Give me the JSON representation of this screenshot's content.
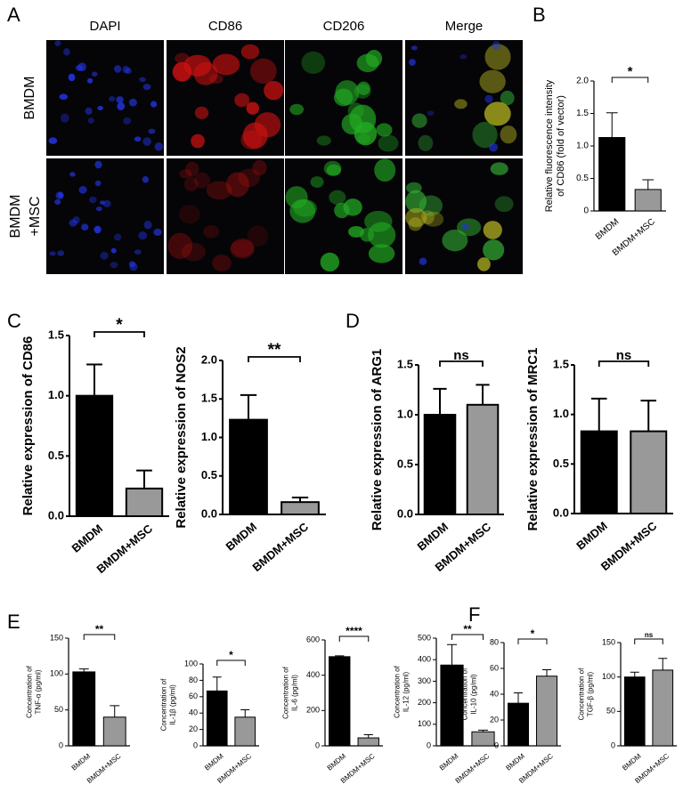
{
  "figure": {
    "panels": [
      "A",
      "B",
      "C",
      "D",
      "E",
      "F"
    ],
    "image_columns": [
      "DAPI",
      "CD86",
      "CD206",
      "Merge"
    ],
    "image_rows": [
      "BMDM",
      "BMDM",
      "+MSC"
    ]
  },
  "chart_data": [
    {
      "type": "bar",
      "ylabel": [
        "Relative fluorescence intensity",
        "of CD86 (fold of vector)"
      ],
      "categories": [
        "BMDM",
        "BMDM+MSC"
      ],
      "values": [
        1.13,
        0.33
      ],
      "errors": [
        0.38,
        0.15
      ],
      "colors": [
        "#000000",
        "#999999"
      ],
      "ylim": [
        0,
        2.0
      ],
      "yticks": [
        0,
        {
          "value": 0.5,
          "label": "0.5"
        },
        {
          "value": 1,
          "label": "1.0"
        },
        {
          "value": 1.5,
          "label": "1.5"
        },
        {
          "value": 2,
          "label": "2.0"
        }
      ],
      "annotation": "*"
    },
    {
      "type": "bar",
      "ylabel": [
        "Relative expression of CD86"
      ],
      "categories": [
        "BMDM",
        "BMDM+MSC"
      ],
      "values": [
        1.0,
        0.23
      ],
      "errors": [
        0.26,
        0.15
      ],
      "colors": [
        "#000000",
        "#999999"
      ],
      "ylim": [
        0,
        1.5
      ],
      "yticks": [
        {
          "value": 0,
          "label": "0.0"
        },
        {
          "value": 0.5,
          "label": "0.5"
        },
        {
          "value": 1,
          "label": "1.0"
        },
        {
          "value": 1.5,
          "label": "1.5"
        }
      ],
      "annotation": "*"
    },
    {
      "type": "bar",
      "ylabel": [
        "Relative expression of NOS2"
      ],
      "categories": [
        "BMDM",
        "BMDM+MSC"
      ],
      "values": [
        1.23,
        0.16
      ],
      "errors": [
        0.32,
        0.06
      ],
      "colors": [
        "#000000",
        "#999999"
      ],
      "ylim": [
        0,
        2.0
      ],
      "yticks": [
        {
          "value": 0,
          "label": "0.0"
        },
        {
          "value": 0.5,
          "label": "0.5"
        },
        {
          "value": 1,
          "label": "1.0"
        },
        {
          "value": 1.5,
          "label": "1.5"
        },
        {
          "value": 2,
          "label": "2.0"
        }
      ],
      "annotation": "**"
    },
    {
      "type": "bar",
      "ylabel": [
        "Relative expression of ARG1"
      ],
      "categories": [
        "BMDM",
        "BMDM+MSC"
      ],
      "values": [
        1.0,
        1.1
      ],
      "errors": [
        0.26,
        0.2
      ],
      "colors": [
        "#000000",
        "#999999"
      ],
      "ylim": [
        0,
        1.5
      ],
      "yticks": [
        {
          "value": 0,
          "label": "0.0"
        },
        {
          "value": 0.5,
          "label": "0.5"
        },
        {
          "value": 1,
          "label": "1.0"
        },
        {
          "value": 1.5,
          "label": "1.5"
        }
      ],
      "annotation": "ns"
    },
    {
      "type": "bar",
      "ylabel": [
        "Relative expression of MRC1"
      ],
      "categories": [
        "BMDM",
        "BMDM+MSC"
      ],
      "values": [
        0.83,
        0.83
      ],
      "errors": [
        0.33,
        0.31
      ],
      "colors": [
        "#000000",
        "#999999"
      ],
      "ylim": [
        0,
        1.5
      ],
      "yticks": [
        {
          "value": 0,
          "label": "0.0"
        },
        {
          "value": 0.5,
          "label": "0.5"
        },
        {
          "value": 1,
          "label": "1.0"
        },
        {
          "value": 1.5,
          "label": "1.5"
        }
      ],
      "annotation": "ns"
    },
    {
      "type": "bar",
      "ylabel": [
        "Concentration of",
        "TNF-α (pg/ml)"
      ],
      "categories": [
        "BMDM",
        "BMDM+MSC"
      ],
      "values": [
        103,
        40
      ],
      "errors": [
        4,
        16
      ],
      "colors": [
        "#000000",
        "#999999"
      ],
      "ylim": [
        0,
        150
      ],
      "yticks": [
        0,
        50,
        100,
        150
      ],
      "annotation": "**"
    },
    {
      "type": "bar",
      "ylabel": [
        "Concentration of",
        "IL-1β (pg/ml)"
      ],
      "categories": [
        "BMDM",
        "BMDM+MSC"
      ],
      "values": [
        67,
        35
      ],
      "errors": [
        17,
        9
      ],
      "colors": [
        "#000000",
        "#999999"
      ],
      "ylim": [
        0,
        100
      ],
      "yticks": [
        0,
        20,
        40,
        60,
        80,
        100
      ],
      "annotation": "*"
    },
    {
      "type": "bar",
      "ylabel": [
        "Concentration of",
        "IL-6 (pg/ml)"
      ],
      "categories": [
        "BMDM",
        "BMDM+MSC"
      ],
      "values": [
        505,
        45
      ],
      "errors": [
        5,
        18
      ],
      "colors": [
        "#000000",
        "#999999"
      ],
      "ylim": [
        0,
        600
      ],
      "yticks": [
        0,
        200,
        400,
        600
      ],
      "annotation": "****"
    },
    {
      "type": "bar",
      "ylabel": [
        "Concentration of",
        "IL-12 (pg/ml)"
      ],
      "categories": [
        "BMDM",
        "BMDM+MSC"
      ],
      "values": [
        375,
        65
      ],
      "errors": [
        95,
        8
      ],
      "colors": [
        "#000000",
        "#999999"
      ],
      "ylim": [
        0,
        500
      ],
      "yticks": [
        0,
        100,
        200,
        300,
        400,
        500
      ],
      "annotation": "**"
    },
    {
      "type": "bar",
      "ylabel": [
        "Concentration of",
        "IL-10 (pg/ml)"
      ],
      "categories": [
        "BMDM",
        "BMDM+MSC"
      ],
      "values": [
        33,
        54
      ],
      "errors": [
        8,
        5
      ],
      "colors": [
        "#000000",
        "#999999"
      ],
      "ylim": [
        0,
        80
      ],
      "yticks": [
        0,
        20,
        40,
        60,
        80
      ],
      "annotation": "*"
    },
    {
      "type": "bar",
      "ylabel": [
        "Concentration of",
        "TGF-β (pg/ml)"
      ],
      "categories": [
        "BMDM",
        "BMDM+MSC"
      ],
      "values": [
        100,
        110
      ],
      "errors": [
        7,
        17
      ],
      "colors": [
        "#000000",
        "#999999"
      ],
      "ylim": [
        0,
        150
      ],
      "yticks": [
        0,
        50,
        100,
        150
      ],
      "annotation": "ns"
    }
  ]
}
